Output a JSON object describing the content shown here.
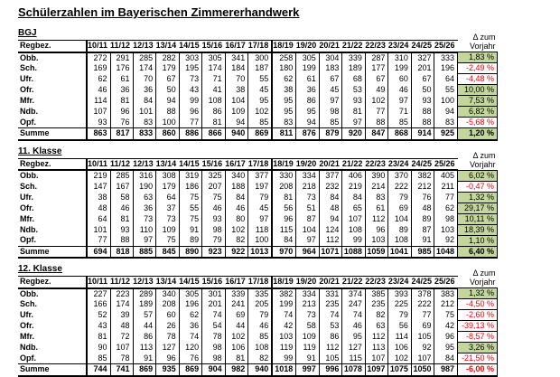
{
  "title": "Schülerzahlen im Bayerischen Zimmererhandwerk",
  "label_header": "Regbez.",
  "delta_header": "Δ zum\nVorjahr",
  "colors": {
    "positive_bg": "#c4d79b",
    "negative_text": "#ff0000"
  },
  "years": [
    "10/11",
    "11/12",
    "12/13",
    "13/14",
    "14/15",
    "15/16",
    "16/17",
    "17/18",
    "18/19",
    "19/20",
    "20/21",
    "21/22",
    "22/23",
    "23/24",
    "24/25",
    "25/26"
  ],
  "tables": [
    {
      "heading": "BGJ",
      "rows": [
        {
          "label": "Obb.",
          "values": [
            272,
            291,
            285,
            282,
            303,
            305,
            341,
            300,
            258,
            305,
            304,
            339,
            287,
            310,
            327,
            333
          ],
          "delta": "1,83 %"
        },
        {
          "label": "Sch.",
          "values": [
            169,
            176,
            174,
            179,
            195,
            174,
            184,
            187,
            180,
            199,
            183,
            189,
            177,
            199,
            201,
            196
          ],
          "delta": "-2,49 %"
        },
        {
          "label": "Ufr.",
          "values": [
            62,
            61,
            70,
            67,
            73,
            71,
            70,
            55,
            62,
            61,
            67,
            68,
            67,
            60,
            67,
            64
          ],
          "delta": "-4,48 %"
        },
        {
          "label": "Ofr.",
          "values": [
            46,
            36,
            36,
            50,
            43,
            41,
            38,
            45,
            38,
            36,
            45,
            53,
            49,
            46,
            50,
            55
          ],
          "delta": "10,00 %"
        },
        {
          "label": "Mfr.",
          "values": [
            114,
            81,
            84,
            94,
            99,
            108,
            104,
            95,
            95,
            86,
            97,
            93,
            102,
            97,
            93,
            100
          ],
          "delta": "7,53 %"
        },
        {
          "label": "Ndb.",
          "values": [
            107,
            96,
            101,
            88,
            96,
            86,
            109,
            102,
            95,
            95,
            98,
            81,
            77,
            71,
            88,
            94
          ],
          "delta": "6,82 %"
        },
        {
          "label": "Opf.",
          "values": [
            93,
            76,
            83,
            100,
            77,
            81,
            94,
            85,
            83,
            94,
            85,
            97,
            88,
            85,
            88,
            83
          ],
          "delta": "-5,68 %"
        }
      ],
      "summe": {
        "label": "Summe",
        "values": [
          863,
          817,
          833,
          860,
          886,
          866,
          940,
          869,
          811,
          876,
          879,
          920,
          847,
          868,
          914,
          925
        ],
        "delta": "1,20 %"
      }
    },
    {
      "heading": "11. Klasse",
      "rows": [
        {
          "label": "Obb.",
          "values": [
            219,
            285,
            316,
            308,
            319,
            325,
            340,
            377,
            330,
            334,
            377,
            406,
            390,
            370,
            382,
            405
          ],
          "delta": "6,02 %"
        },
        {
          "label": "Sch.",
          "values": [
            147,
            167,
            190,
            179,
            186,
            207,
            188,
            197,
            208,
            218,
            232,
            219,
            214,
            222,
            212,
            211
          ],
          "delta": "-0,47 %"
        },
        {
          "label": "Ufr.",
          "values": [
            38,
            58,
            63,
            64,
            75,
            75,
            84,
            79,
            81,
            73,
            84,
            84,
            83,
            79,
            76,
            77
          ],
          "delta": "1,32 %"
        },
        {
          "label": "Ofr.",
          "values": [
            48,
            46,
            36,
            37,
            55,
            46,
            46,
            45,
            56,
            51,
            48,
            65,
            61,
            69,
            48,
            62
          ],
          "delta": "29,17 %"
        },
        {
          "label": "Mfr.",
          "values": [
            64,
            81,
            73,
            73,
            75,
            93,
            80,
            97,
            96,
            87,
            94,
            107,
            112,
            104,
            89,
            98
          ],
          "delta": "10,11 %"
        },
        {
          "label": "Ndb.",
          "values": [
            101,
            93,
            110,
            109,
            91,
            98,
            102,
            118,
            115,
            104,
            124,
            108,
            96,
            89,
            87,
            103
          ],
          "delta": "18,39 %"
        },
        {
          "label": "Opf.",
          "values": [
            77,
            88,
            97,
            75,
            89,
            79,
            82,
            100,
            84,
            97,
            112,
            99,
            103,
            108,
            91,
            92
          ],
          "delta": "1,10 %"
        }
      ],
      "summe": {
        "label": "Summe",
        "values": [
          694,
          818,
          885,
          845,
          890,
          923,
          922,
          1013,
          970,
          964,
          1071,
          1088,
          1059,
          1041,
          985,
          1048
        ],
        "delta": "6,40 %"
      }
    },
    {
      "heading": "12. Klasse",
      "rows": [
        {
          "label": "Obb.",
          "values": [
            227,
            223,
            289,
            340,
            305,
            301,
            339,
            335,
            382,
            334,
            331,
            374,
            385,
            393,
            378,
            383
          ],
          "delta": "1,32 %"
        },
        {
          "label": "Sch.",
          "values": [
            166,
            174,
            189,
            208,
            196,
            201,
            241,
            205,
            199,
            213,
            235,
            247,
            235,
            225,
            222,
            212
          ],
          "delta": "-4,50 %"
        },
        {
          "label": "Ufr.",
          "values": [
            52,
            39,
            57,
            60,
            62,
            74,
            69,
            79,
            74,
            73,
            74,
            74,
            82,
            79,
            77,
            75
          ],
          "delta": "-2,60 %"
        },
        {
          "label": "Ofr.",
          "values": [
            43,
            48,
            44,
            26,
            36,
            54,
            44,
            46,
            42,
            58,
            53,
            46,
            63,
            56,
            69,
            42
          ],
          "delta": "-39,13 %"
        },
        {
          "label": "Mfr.",
          "values": [
            81,
            72,
            86,
            78,
            74,
            78,
            102,
            85,
            103,
            109,
            86,
            95,
            112,
            114,
            105,
            96
          ],
          "delta": "-8,57 %"
        },
        {
          "label": "Ndb.",
          "values": [
            90,
            107,
            113,
            127,
            120,
            98,
            106,
            108,
            119,
            119,
            112,
            127,
            113,
            106,
            92,
            95
          ],
          "delta": "3,26 %"
        },
        {
          "label": "Opf.",
          "values": [
            85,
            78,
            91,
            96,
            76,
            98,
            81,
            82,
            99,
            91,
            105,
            115,
            107,
            102,
            107,
            84
          ],
          "delta": "-21,50 %"
        }
      ],
      "summe": {
        "label": "Summe",
        "values": [
          744,
          741,
          869,
          935,
          869,
          904,
          982,
          940,
          1018,
          997,
          996,
          1078,
          1097,
          1075,
          1050,
          987
        ],
        "delta": "-6,00 %"
      }
    }
  ]
}
